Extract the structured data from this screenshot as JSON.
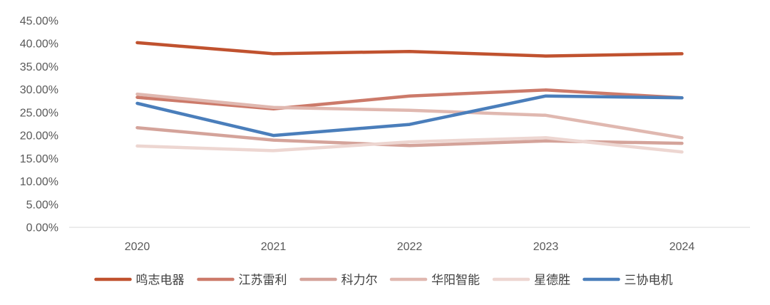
{
  "chart_data": {
    "type": "line",
    "title": "",
    "xlabel": "",
    "ylabel": "",
    "categories": [
      "2020",
      "2021",
      "2022",
      "2023",
      "2024"
    ],
    "ylim": [
      0,
      45
    ],
    "y_ticks": [
      "0.00%",
      "5.00%",
      "10.00%",
      "15.00%",
      "20.00%",
      "25.00%",
      "30.00%",
      "35.00%",
      "40.00%",
      "45.00%"
    ],
    "grid": false,
    "legend_position": "bottom",
    "series": [
      {
        "name": "鸣志电器",
        "color": "#C0522F",
        "values": [
          40.2,
          37.8,
          38.3,
          37.3,
          37.8
        ]
      },
      {
        "name": "江苏雷利",
        "color": "#CC7A6A",
        "values": [
          28.3,
          25.8,
          28.6,
          29.9,
          28.2
        ]
      },
      {
        "name": "科力尔",
        "color": "#D4A39A",
        "values": [
          21.7,
          19.0,
          17.8,
          18.8,
          18.3
        ]
      },
      {
        "name": "华阳智能",
        "color": "#E0B8B0",
        "values": [
          29.0,
          26.1,
          25.5,
          24.4,
          19.5
        ]
      },
      {
        "name": "星德胜",
        "color": "#EDD6D1",
        "values": [
          17.7,
          16.7,
          18.6,
          19.5,
          16.4
        ]
      },
      {
        "name": "三协电机",
        "color": "#4A7EBB",
        "values": [
          27.0,
          20.0,
          22.4,
          28.6,
          28.2
        ]
      }
    ]
  }
}
